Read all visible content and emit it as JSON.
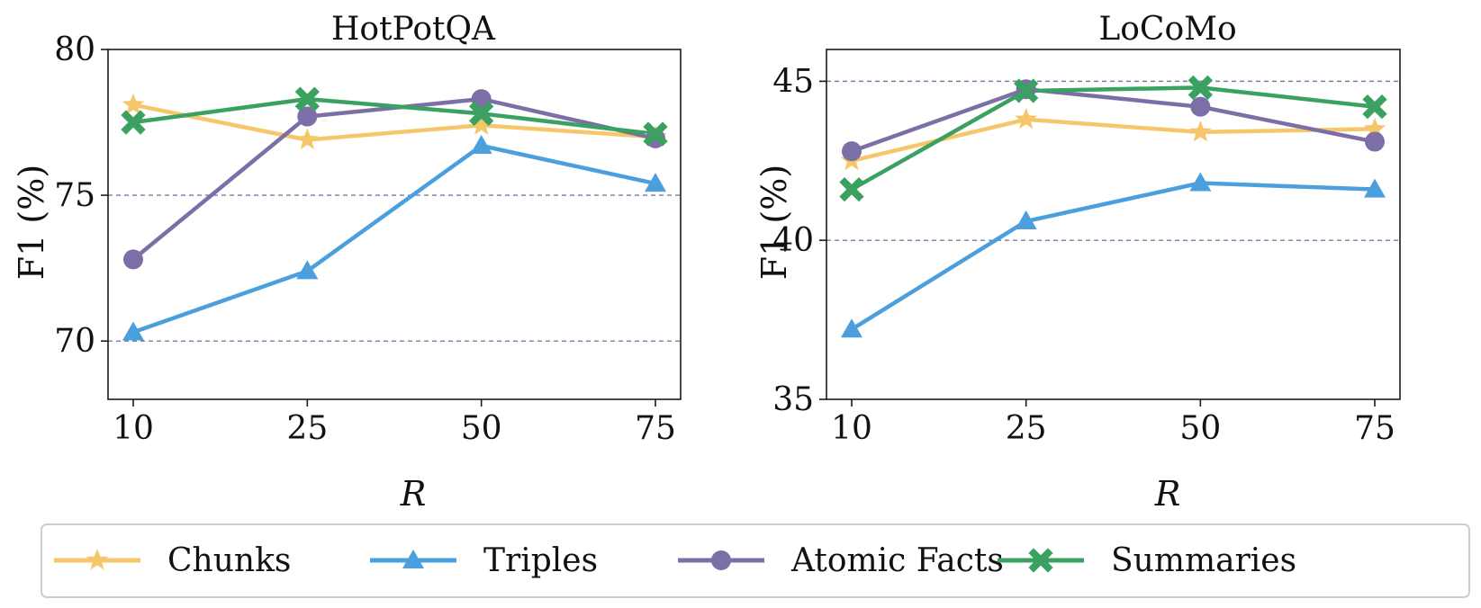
{
  "chart_data": [
    {
      "type": "line",
      "title": "HotPotQA",
      "xlabel": "R",
      "ylabel": "F1 (%)",
      "categories": [
        "10",
        "25",
        "50",
        "75"
      ],
      "ylim": [
        68,
        80
      ],
      "yticks": [
        70,
        75,
        80
      ],
      "reference_lines": [
        70,
        75
      ],
      "series": [
        {
          "name": "Chunks",
          "values": [
            78.1,
            76.9,
            77.4,
            77.0
          ]
        },
        {
          "name": "Triples",
          "values": [
            70.3,
            72.4,
            76.7,
            75.4
          ]
        },
        {
          "name": "Atomic Facts",
          "values": [
            72.8,
            77.7,
            78.3,
            76.95
          ]
        },
        {
          "name": "Summaries",
          "values": [
            77.5,
            78.3,
            77.8,
            77.1
          ]
        }
      ]
    },
    {
      "type": "line",
      "title": "LoCoMo",
      "xlabel": "R",
      "ylabel": "F1 (%)",
      "categories": [
        "10",
        "25",
        "50",
        "75"
      ],
      "ylim": [
        35,
        46
      ],
      "yticks": [
        35,
        40,
        45
      ],
      "reference_lines": [
        40,
        45
      ],
      "series": [
        {
          "name": "Chunks",
          "values": [
            42.5,
            43.8,
            43.4,
            43.5
          ]
        },
        {
          "name": "Triples",
          "values": [
            37.2,
            40.6,
            41.8,
            41.6
          ]
        },
        {
          "name": "Atomic Facts",
          "values": [
            42.8,
            44.75,
            44.2,
            43.1
          ]
        },
        {
          "name": "Summaries",
          "values": [
            41.6,
            44.7,
            44.8,
            44.2
          ]
        }
      ]
    }
  ],
  "legend": {
    "placement": "bottom",
    "items": [
      {
        "name": "Chunks",
        "marker": "star",
        "color": "#f5c76a"
      },
      {
        "name": "Triples",
        "marker": "triangle",
        "color": "#4a9fdc"
      },
      {
        "name": "Atomic Facts",
        "marker": "circle",
        "color": "#7c6ea6"
      },
      {
        "name": "Summaries",
        "marker": "x",
        "color": "#3aa160"
      }
    ]
  },
  "colors": {
    "chunks": "#f5c76a",
    "triples": "#4a9fdc",
    "atomic_facts": "#7c6ea6",
    "summaries": "#3aa160",
    "reference_line": "#7a79a8"
  }
}
